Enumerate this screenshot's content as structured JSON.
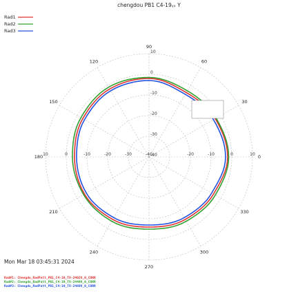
{
  "chart_data": {
    "type": "line",
    "polar": true,
    "title": "chengdou PB1 C4-19ᵧₓ Y",
    "r_scale": "dB",
    "r_max": 10,
    "r_min": -40,
    "r_ring_values": [
      10,
      0,
      -10,
      -20,
      -30,
      -40
    ],
    "r_tick_labels": [
      "10",
      "0",
      "-10",
      "-20",
      "-30",
      "-40"
    ],
    "r_tick_labels_right": [
      "-20",
      "-10",
      "0",
      "10"
    ],
    "angle_labels": [
      {
        "angle": 0,
        "label": "0"
      },
      {
        "angle": 30,
        "label": "30"
      },
      {
        "angle": 60,
        "label": "60"
      },
      {
        "angle": 90,
        "label": "90"
      },
      {
        "angle": 120,
        "label": "120"
      },
      {
        "angle": 150,
        "label": "150"
      },
      {
        "angle": 180,
        "label": "180"
      },
      {
        "angle": 210,
        "label": "210"
      },
      {
        "angle": 240,
        "label": "240"
      },
      {
        "angle": 270,
        "label": "270"
      },
      {
        "angle": 300,
        "label": "300"
      },
      {
        "angle": 330,
        "label": "330"
      }
    ],
    "legend_position": "top-left",
    "angles": [
      0,
      30,
      60,
      90,
      120,
      150,
      180,
      210,
      240,
      270,
      300,
      330,
      360
    ],
    "series": [
      {
        "name": "Rad1",
        "color": "#e03030",
        "values": [
          -2,
          -3,
          -4,
          -2,
          -2,
          -3,
          -4,
          -4,
          -5,
          -6,
          -5,
          -4,
          -2
        ]
      },
      {
        "name": "Rad2",
        "color": "#30a030",
        "values": [
          -1.5,
          -2.5,
          -3,
          -1.5,
          -1,
          -2,
          -3,
          -3.5,
          -4,
          -5,
          -4,
          -3,
          -1.5
        ]
      },
      {
        "name": "Rad3",
        "color": "#2050e0",
        "values": [
          -3,
          -4,
          -5,
          -3,
          -3,
          -4,
          -5,
          -5,
          -6,
          -7,
          -6,
          -5,
          -3
        ]
      }
    ],
    "grid": true
  },
  "timestamp": "Mon Mar 18 03:45:31 2024",
  "footer": [
    {
      "text": "Rad#1: Chengdu_RadPatt_PB1_C4-19_TX-2402V_0_CORR",
      "color": "#e03030"
    },
    {
      "text": "Rad#2: Chengdu_RadPatt_PB1_C4-19_TX-2440V_0_CORR",
      "color": "#30a030"
    },
    {
      "text": "Rad#3: Chengdu_RadPatt_PB1_C4-19_TX-2480V_0_CORR",
      "color": "#2050e0"
    }
  ]
}
